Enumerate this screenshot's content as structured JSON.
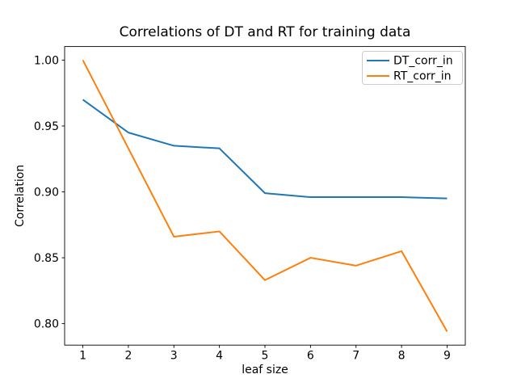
{
  "chart_data": {
    "type": "line",
    "title": "Correlations of DT and RT for training data",
    "xlabel": "leaf size",
    "ylabel": "Correlation",
    "x": [
      1,
      2,
      3,
      4,
      5,
      6,
      7,
      8,
      9
    ],
    "series": [
      {
        "name": "DT_corr_in",
        "color": "#1f77b4",
        "values": [
          0.97,
          0.945,
          0.935,
          0.933,
          0.899,
          0.896,
          0.896,
          0.896,
          0.895
        ]
      },
      {
        "name": "RT_corr_in",
        "color": "#ff7f0e",
        "values": [
          1.0,
          0.933,
          0.866,
          0.87,
          0.833,
          0.85,
          0.844,
          0.855,
          0.794
        ]
      }
    ],
    "xlim": [
      0.6,
      9.4
    ],
    "ylim": [
      0.7837,
      1.0103
    ],
    "x_ticks": {
      "values": [
        1,
        2,
        3,
        4,
        5,
        6,
        7,
        8,
        9
      ],
      "labels": [
        "1",
        "2",
        "3",
        "4",
        "5",
        "6",
        "7",
        "8",
        "9"
      ]
    },
    "y_ticks": {
      "values": [
        0.8,
        0.85,
        0.9,
        0.95,
        1.0
      ],
      "labels": [
        "0.80",
        "0.85",
        "0.90",
        "0.95",
        "1.00"
      ]
    },
    "grid": false,
    "legend": {
      "position": "upper-right",
      "entries": [
        "DT_corr_in",
        "RT_corr_in"
      ]
    }
  }
}
